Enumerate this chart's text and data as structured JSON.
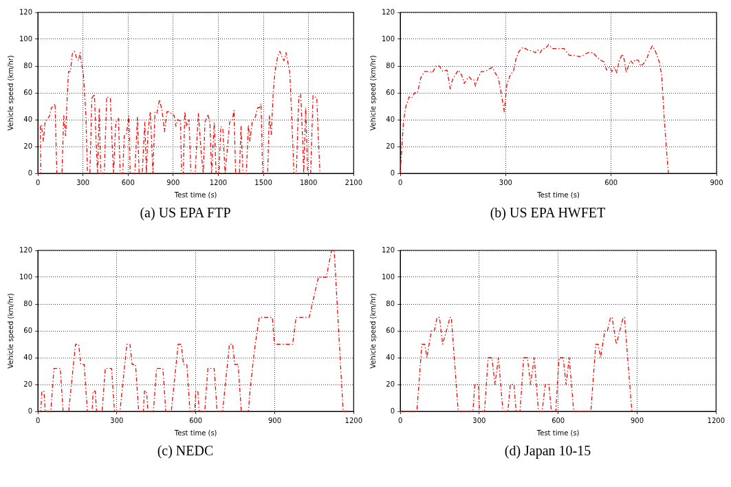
{
  "chart_data": [
    {
      "type": "line",
      "title": "(a) US EPA FTP",
      "xlabel": "Test time (s)",
      "ylabel": "Vehicle speed (km/hr)",
      "xlim": [
        0,
        2100
      ],
      "xticks": [
        0,
        300,
        600,
        900,
        1200,
        1500,
        1800,
        2100
      ],
      "ylim": [
        0,
        120
      ],
      "yticks": [
        0,
        20,
        40,
        60,
        80,
        100,
        120
      ],
      "grid": true,
      "line_style": "dashed",
      "series": [
        {
          "color": "#ff0000",
          "x": [
            0,
            20,
            16,
            24,
            36,
            49,
            62,
            78,
            90,
            106,
            114,
            126,
            160,
            172,
            185,
            196,
            204,
            216,
            229,
            242,
            258,
            270,
            281,
            291,
            302,
            319,
            330,
            346,
            359,
            376,
            387,
            397,
            408,
            418,
            441,
            458,
            482,
            493,
            503,
            518,
            536,
            547,
            564,
            575,
            588,
            605,
            614,
            645,
            662,
            673,
            694,
            711,
            722,
            732,
            748,
            765,
            779,
            792,
            809,
            825,
            842,
            858,
            874,
            891,
            907,
            918,
            931,
            948,
            956,
            967,
            977,
            989,
            1005,
            1018,
            1046,
            1067,
            1087,
            1100,
            1111,
            1131,
            1144,
            1155,
            1173,
            1185,
            1204,
            1217,
            1230,
            1245,
            1258,
            1275,
            1294,
            1304,
            1315,
            1340,
            1351,
            1364,
            1386,
            1400,
            1410,
            1426,
            1446,
            1462,
            1474,
            1484,
            1495,
            1528,
            1539,
            1552,
            1565,
            1577,
            1593,
            1609,
            1626,
            1637,
            1650,
            1667,
            1675,
            1686,
            1703,
            1719,
            1735,
            1748,
            1761,
            1768,
            1781,
            1794,
            1814,
            1830,
            1855,
            1866,
            1876
          ],
          "values": [
            0,
            0,
            36,
            36,
            24,
            39,
            40,
            43,
            49,
            50,
            52,
            0,
            0,
            43,
            28,
            60,
            76,
            76,
            89,
            91,
            86,
            84,
            90,
            81,
            75,
            44,
            0,
            0,
            56,
            59,
            24,
            0,
            48,
            0,
            0,
            57,
            56,
            24,
            0,
            38,
            41,
            0,
            0,
            28,
            29,
            43,
            0,
            0,
            42,
            0,
            0,
            38,
            0,
            31,
            46,
            0,
            46,
            45,
            55,
            47,
            31,
            46,
            46,
            44,
            43,
            35,
            40,
            39,
            0,
            0,
            46,
            35,
            40,
            0,
            0,
            45,
            14,
            0,
            38,
            44,
            38,
            0,
            38,
            0,
            0,
            35,
            33,
            0,
            16,
            38,
            40,
            47,
            0,
            0,
            35,
            0,
            0,
            36,
            24,
            39,
            42,
            49,
            49,
            52,
            0,
            0,
            43,
            29,
            60,
            76,
            86,
            91,
            86,
            84,
            90,
            80,
            76,
            48,
            0,
            0,
            57,
            59,
            24,
            0,
            49,
            0,
            0,
            58,
            56,
            24,
            0
          ]
        }
      ]
    },
    {
      "type": "line",
      "title": "(b) US EPA HWFET",
      "xlabel": "Test time (s)",
      "ylabel": "Vehicle speed (km/hr)",
      "xlim": [
        0,
        900
      ],
      "xticks": [
        0,
        300,
        600,
        900
      ],
      "ylim": [
        0,
        120
      ],
      "yticks": [
        0,
        20,
        40,
        60,
        80,
        100,
        120
      ],
      "grid": true,
      "line_style": "dashed",
      "series": [
        {
          "color": "#ff0000",
          "x": [
            0,
            9,
            16,
            25,
            32,
            41,
            49,
            58,
            69,
            83,
            91,
            102,
            111,
            121,
            133,
            142,
            149,
            165,
            175,
            182,
            189,
            196,
            202,
            209,
            214,
            221,
            231,
            242,
            254,
            262,
            272,
            279,
            287,
            296,
            303,
            314,
            322,
            329,
            338,
            349,
            363,
            377,
            384,
            391,
            398,
            405,
            413,
            422,
            433,
            443,
            454,
            466,
            481,
            495,
            510,
            520,
            534,
            548,
            562,
            573,
            580,
            587,
            595,
            602,
            610,
            616,
            623,
            632,
            637,
            643,
            649,
            655,
            662,
            669,
            678,
            684,
            693,
            702,
            709,
            717,
            726,
            737,
            744,
            751,
            758,
            763
          ],
          "values": [
            0,
            39,
            50,
            57,
            56,
            60,
            60,
            71,
            76,
            76,
            75,
            80,
            80,
            76,
            77,
            63,
            70,
            77,
            73,
            67,
            70,
            72,
            70,
            70,
            65,
            71,
            76,
            76,
            78,
            79,
            74,
            71,
            60,
            46,
            66,
            74,
            76,
            85,
            91,
            94,
            92,
            91,
            90,
            92,
            90,
            93,
            93,
            96,
            93,
            93,
            93,
            93,
            88,
            88,
            87,
            88,
            90,
            90,
            86,
            84,
            83,
            77,
            79,
            76,
            79,
            75,
            84,
            89,
            85,
            75,
            80,
            84,
            82,
            85,
            84,
            80,
            82,
            86,
            91,
            95,
            91,
            83,
            73,
            41,
            16,
            0
          ]
        }
      ]
    },
    {
      "type": "line",
      "title": "(c) NEDC",
      "xlabel": "Test time (s)",
      "ylabel": "Vehicle speed (km/hr)",
      "xlim": [
        0,
        1200
      ],
      "xticks": [
        0,
        300,
        600,
        900,
        1200
      ],
      "ylim": [
        0,
        120
      ],
      "yticks": [
        0,
        20,
        40,
        60,
        80,
        100,
        120
      ],
      "grid": true,
      "line_style": "dashed",
      "series": [
        {
          "color": "#ff0000",
          "x": [
            0,
            11,
            15,
            23,
            28,
            49,
            61,
            85,
            96,
            117,
            143,
            155,
            163,
            176,
            188,
            206,
            210,
            218,
            223,
            244,
            256,
            280,
            291,
            312,
            338,
            350,
            358,
            371,
            383,
            401,
            405,
            413,
            418,
            439,
            451,
            475,
            486,
            507,
            533,
            545,
            553,
            566,
            578,
            596,
            600,
            608,
            613,
            634,
            646,
            670,
            681,
            702,
            728,
            740,
            748,
            761,
            773,
            800,
            806,
            817,
            826,
            841,
            891,
            899,
            968,
            981,
            1031,
            1066,
            1096,
            1116,
            1126,
            1160,
            1180
          ],
          "values": [
            0,
            0,
            15,
            15,
            0,
            0,
            32,
            32,
            0,
            0,
            50,
            50,
            35,
            35,
            0,
            0,
            15,
            15,
            0,
            0,
            32,
            32,
            0,
            0,
            50,
            50,
            35,
            35,
            0,
            0,
            15,
            15,
            0,
            0,
            32,
            32,
            0,
            0,
            50,
            50,
            35,
            35,
            0,
            0,
            15,
            15,
            0,
            0,
            32,
            32,
            0,
            0,
            50,
            50,
            35,
            35,
            0,
            0,
            15,
            35,
            50,
            70,
            70,
            50,
            50,
            70,
            70,
            100,
            100,
            120,
            120,
            0,
            0
          ]
        }
      ]
    },
    {
      "type": "line",
      "title": "(d) Japan 10-15",
      "xlabel": "Test time (s)",
      "ylabel": "Vehicle speed (km/hr)",
      "xlim": [
        0,
        1200
      ],
      "xticks": [
        0,
        300,
        600,
        900,
        1200
      ],
      "ylim": [
        0,
        120
      ],
      "yticks": [
        0,
        20,
        40,
        60,
        80,
        100,
        120
      ],
      "grid": true,
      "line_style": "dashed",
      "series": [
        {
          "color": "#ff0000",
          "x": [
            0,
            63,
            82,
            93,
            101,
            118,
            129,
            140,
            149,
            161,
            189,
            194,
            220,
            276,
            283,
            297,
            301,
            320,
            334,
            348,
            360,
            373,
            390,
            409,
            418,
            432,
            440,
            455,
            469,
            483,
            495,
            509,
            525,
            539,
            551,
            565,
            574,
            591,
            603,
            619,
            630,
            642,
            659,
            724,
            743,
            752,
            761,
            777,
            787,
            799,
            805,
            821,
            847,
            852,
            880,
            892
          ],
          "values": [
            0,
            0,
            50,
            50,
            40,
            60,
            60,
            70,
            70,
            50,
            70,
            70,
            0,
            0,
            20,
            20,
            0,
            0,
            40,
            40,
            20,
            40,
            0,
            0,
            20,
            20,
            0,
            0,
            40,
            40,
            20,
            40,
            0,
            0,
            20,
            20,
            0,
            0,
            40,
            40,
            20,
            40,
            0,
            0,
            50,
            50,
            40,
            60,
            60,
            70,
            70,
            50,
            70,
            70,
            0,
            0
          ]
        }
      ]
    }
  ]
}
